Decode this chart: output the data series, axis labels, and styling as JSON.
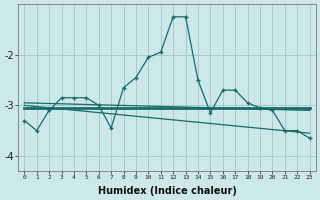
{
  "xlabel": "Humidex (Indice chaleur)",
  "ylabel": "",
  "background_color": "#cce8e8",
  "grid_color": "#aacccc",
  "line_color": "#1a6b6b",
  "x_data": [
    0,
    1,
    2,
    3,
    4,
    5,
    6,
    7,
    8,
    9,
    10,
    11,
    12,
    13,
    14,
    15,
    16,
    17,
    18,
    19,
    20,
    21,
    22,
    23
  ],
  "line1": [
    -3.3,
    -3.5,
    -3.1,
    -2.85,
    -2.85,
    -2.85,
    -3.0,
    -3.45,
    -2.65,
    -2.45,
    -2.05,
    -1.95,
    -1.25,
    -1.25,
    -2.5,
    -3.15,
    -2.7,
    -2.7,
    -2.95,
    -3.05,
    -3.1,
    -3.5,
    -3.5,
    -3.65
  ],
  "line2_x": [
    0,
    23
  ],
  "line2_y": [
    -3.05,
    -3.05
  ],
  "line3_x": [
    0,
    23
  ],
  "line3_y": [
    -3.0,
    -3.55
  ],
  "line4_x": [
    0,
    23
  ],
  "line4_y": [
    -2.95,
    -3.1
  ],
  "ylim": [
    -4.3,
    -1.0
  ],
  "xlim": [
    -0.5,
    23.5
  ],
  "yticks": [
    -4,
    -3,
    -2
  ],
  "xticks": [
    0,
    1,
    2,
    3,
    4,
    5,
    6,
    7,
    8,
    9,
    10,
    11,
    12,
    13,
    14,
    15,
    16,
    17,
    18,
    19,
    20,
    21,
    22,
    23
  ]
}
